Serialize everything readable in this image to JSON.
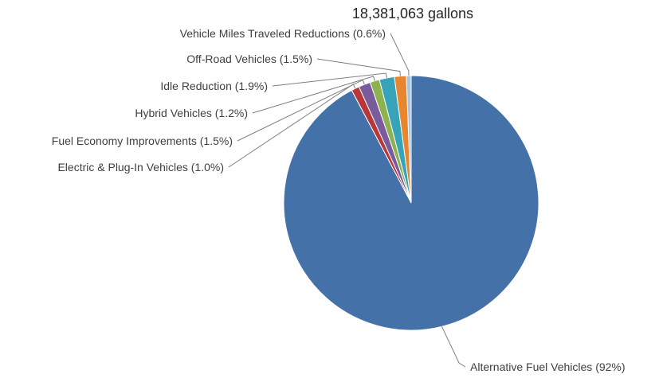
{
  "chart_data": {
    "type": "pie",
    "title": "18,381,063 gallons",
    "slices": [
      {
        "name": "Alternative Fuel Vehicles",
        "label": "Alternative Fuel Vehicles (92%)",
        "value": 92.0,
        "color": "#4472a8"
      },
      {
        "name": "Electric & Plug-In Vehicles",
        "label": "Electric & Plug-In Vehicles (1.0%)",
        "value": 1.0,
        "color": "#b9373a"
      },
      {
        "name": "Fuel Economy Improvements",
        "label": "Fuel Economy Improvements (1.5%)",
        "value": 1.5,
        "color": "#7a5c9c"
      },
      {
        "name": "Hybrid Vehicles",
        "label": "Hybrid Vehicles (1.2%)",
        "value": 1.2,
        "color": "#8db24f"
      },
      {
        "name": "Idle Reduction",
        "label": "Idle Reduction (1.9%)",
        "value": 1.9,
        "color": "#36a3b8"
      },
      {
        "name": "Off-Road Vehicles",
        "label": "Off-Road Vehicles (1.5%)",
        "value": 1.5,
        "color": "#e7862f"
      },
      {
        "name": "Vehicle Miles Traveled Reductions",
        "label": "Vehicle Miles Traveled Reductions (0.6%)",
        "value": 0.6,
        "color": "#a7c4e3"
      }
    ]
  }
}
